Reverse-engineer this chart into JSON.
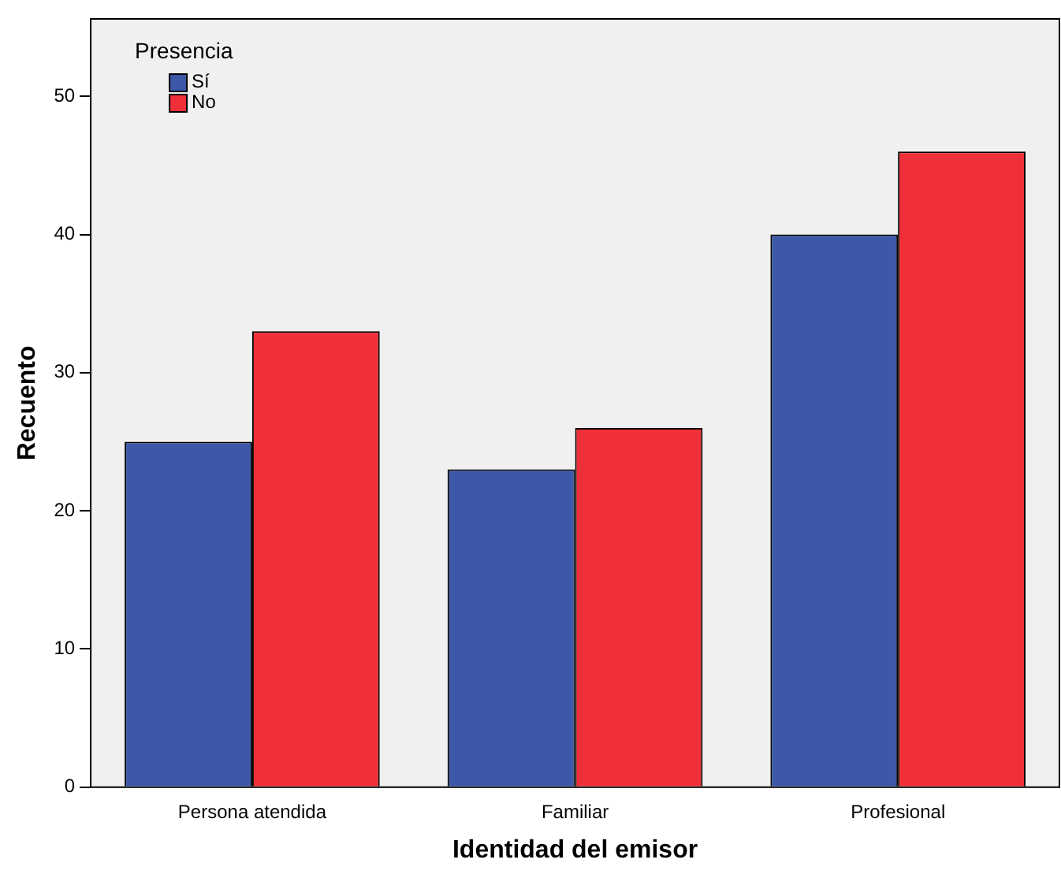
{
  "chart_data": {
    "type": "bar",
    "xlabel": "Identidad del emisor",
    "ylabel": "Recuento",
    "legend_title": "Presencia",
    "categories": [
      "Persona atendida",
      "Familiar",
      "Profesional"
    ],
    "series": [
      {
        "name": "Sí",
        "color": "#3d58a9",
        "values": [
          25,
          23,
          40
        ]
      },
      {
        "name": "No",
        "color": "#ef3038",
        "values": [
          33,
          26,
          46
        ]
      }
    ],
    "ylim": [
      0,
      55.6
    ],
    "yticks": [
      0,
      10,
      20,
      30,
      40,
      50
    ],
    "grid": false,
    "legend": "top left"
  }
}
